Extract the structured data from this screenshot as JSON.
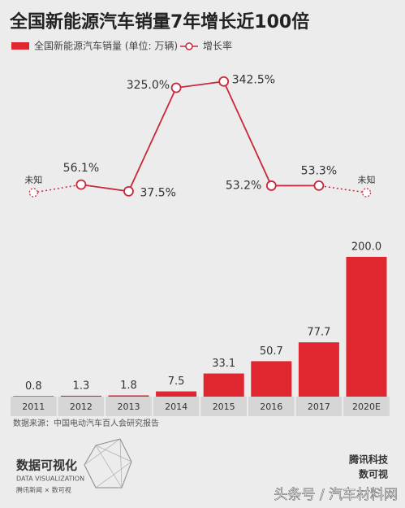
{
  "chart_data": {
    "type": "bar",
    "title": "全国新能源汽车销量7年增长近100倍",
    "categories": [
      "2011",
      "2012",
      "2013",
      "2014",
      "2015",
      "2016",
      "2017",
      "2020E"
    ],
    "series": [
      {
        "name": "全国新能源汽车销量 (单位: 万辆)",
        "type": "bar",
        "color": "#e0262f",
        "values": [
          0.8,
          1.3,
          1.8,
          7.5,
          33.1,
          50.7,
          77.7,
          200.0
        ],
        "value_labels": [
          "0.8",
          "1.3",
          "1.8",
          "7.5",
          "33.1",
          "50.7",
          "77.7",
          "200.0"
        ]
      },
      {
        "name": "增长率",
        "type": "line",
        "color": "#c8283a",
        "values": [
          null,
          56.1,
          37.5,
          325.0,
          342.5,
          53.2,
          53.3,
          null
        ],
        "value_labels": [
          "未知",
          "56.1%",
          "37.5%",
          "325.0%",
          "342.5%",
          "53.2%",
          "53.3%",
          "未知"
        ]
      }
    ],
    "source": "数据来源：中国电动汽车百人会研究报告",
    "logo": {
      "title": "数据可视化",
      "subtitle": "DATA VISUALIZATION",
      "partners": "腾讯新闻 × 数可视"
    },
    "brand": [
      "腾讯科技",
      "数可视"
    ],
    "watermark": "头条号 / 汽车材料网"
  }
}
